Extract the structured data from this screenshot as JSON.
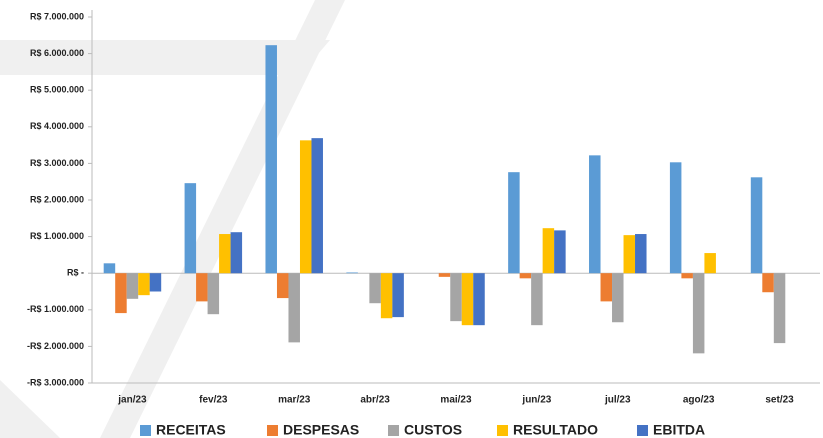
{
  "chart_data": {
    "type": "bar",
    "categories": [
      "jan/23",
      "fev/23",
      "mar/23",
      "abr/23",
      "mai/23",
      "jun/23",
      "jul/23",
      "ago/23",
      "set/23"
    ],
    "series": [
      {
        "name": "RECEITAS",
        "color": "#5b9bd5",
        "values": [
          270000,
          2460000,
          6230000,
          20000,
          0,
          2760000,
          3220000,
          3030000,
          2620000
        ]
      },
      {
        "name": "DESPESAS",
        "color": "#ed7d31",
        "values": [
          -1090000,
          -770000,
          -680000,
          0,
          -100000,
          -140000,
          -770000,
          -140000,
          -520000
        ]
      },
      {
        "name": "CUSTOS",
        "color": "#a5a5a5",
        "values": [
          -700000,
          -1120000,
          -1890000,
          -820000,
          -1310000,
          -1420000,
          -1340000,
          -2190000,
          -1910000
        ]
      },
      {
        "name": "RESULTADO",
        "color": "#ffc000",
        "values": [
          -600000,
          1070000,
          3630000,
          -1230000,
          -1420000,
          1230000,
          1040000,
          550000,
          0
        ]
      },
      {
        "name": "EBITDA",
        "color": "#4472c4",
        "values": [
          -500000,
          1120000,
          3690000,
          -1200000,
          -1420000,
          1170000,
          1070000,
          0,
          0
        ]
      }
    ],
    "ylim": [
      -3000000,
      7000000
    ],
    "yticks": [
      {
        "value": 7000000,
        "label": "R$ 7.000.000"
      },
      {
        "value": 6000000,
        "label": "R$ 6.000.000"
      },
      {
        "value": 5000000,
        "label": "R$ 5.000.000"
      },
      {
        "value": 4000000,
        "label": "R$ 4.000.000"
      },
      {
        "value": 3000000,
        "label": "R$ 3.000.000"
      },
      {
        "value": 2000000,
        "label": "R$ 2.000.000"
      },
      {
        "value": 1000000,
        "label": "R$ 1.000.000"
      },
      {
        "value": 0,
        "label": "R$ -"
      },
      {
        "value": -1000000,
        "label": "-R$ 1.000.000"
      },
      {
        "value": -2000000,
        "label": "-R$ 2.000.000"
      },
      {
        "value": -3000000,
        "label": "-R$ 3.000.000"
      }
    ],
    "legend": "bottom"
  }
}
